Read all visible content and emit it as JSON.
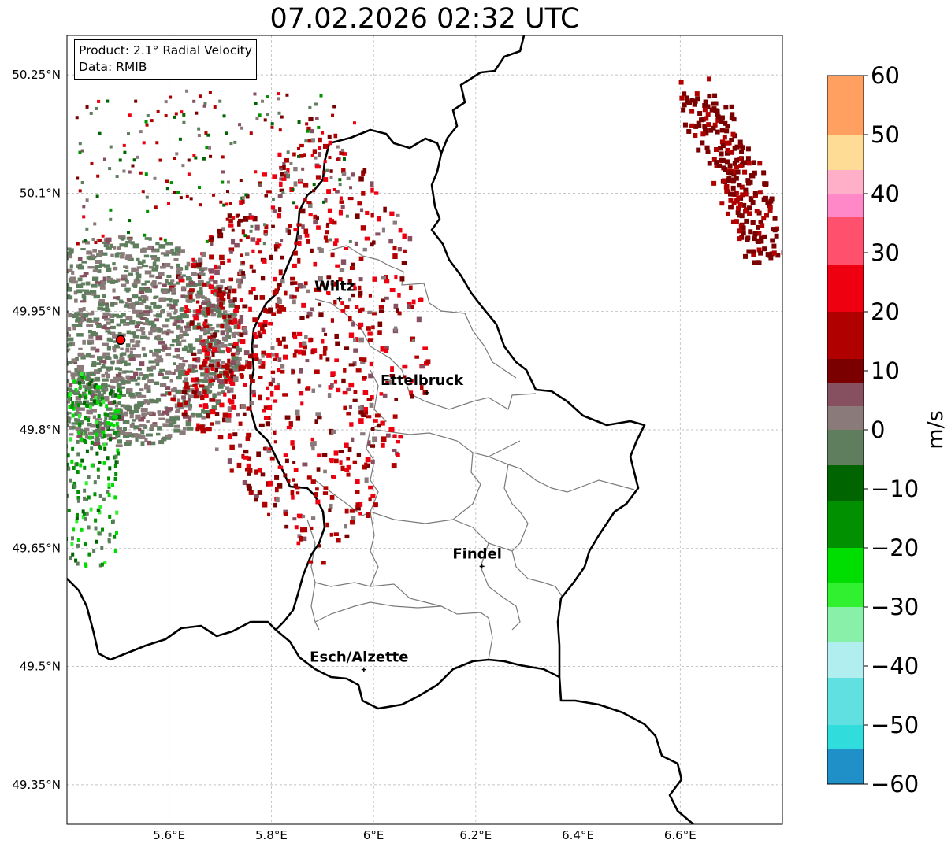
{
  "title": "07.02.2026 02:32 UTC",
  "info": {
    "product": "Product: 2.1° Radial Velocity",
    "source": "Data: RMIB"
  },
  "axes": {
    "lat_labels": [
      "50.25°N",
      "50.1°N",
      "49.95°N",
      "49.8°N",
      "49.65°N",
      "49.5°N",
      "49.35°N"
    ],
    "lon_labels": [
      "5.6°E",
      "5.8°E",
      "6°E",
      "6.2°E",
      "6.4°E",
      "6.6°E"
    ],
    "lat_values": [
      50.25,
      50.1,
      49.95,
      49.8,
      49.65,
      49.5,
      49.35
    ],
    "lon_values": [
      5.6,
      5.8,
      6.0,
      6.2,
      6.4,
      6.6
    ],
    "lon_range": [
      5.4,
      6.8
    ],
    "lat_range": [
      49.3,
      50.3
    ],
    "grid": true
  },
  "cities": [
    {
      "name": "Wiltz",
      "lon": 5.933,
      "lat": 49.966
    },
    {
      "name": "Ettelbruck",
      "lon": 6.104,
      "lat": 49.847
    },
    {
      "name": "Findel",
      "lon": 6.212,
      "lat": 49.627
    },
    {
      "name": "Esch/Alzette",
      "lon": 5.981,
      "lat": 49.496
    }
  ],
  "radar_site": {
    "lon": 5.505,
    "lat": 49.914,
    "color": "#ff0000"
  },
  "colorbar": {
    "unit": "m/s",
    "min": -60,
    "max": 60,
    "ticks": [
      60,
      50,
      40,
      30,
      20,
      10,
      0,
      -10,
      -20,
      -30,
      -40,
      -50,
      -60
    ],
    "tick_labels": [
      "60",
      "50",
      "40",
      "30",
      "20",
      "10",
      "0",
      "−10",
      "−20",
      "−30",
      "−40",
      "−50",
      "−60"
    ],
    "stops": [
      {
        "from": 50,
        "to": 60,
        "color": "#ffa060"
      },
      {
        "from": 44,
        "to": 50,
        "color": "#ffdc96"
      },
      {
        "from": 40,
        "to": 44,
        "color": "#ffb0c8"
      },
      {
        "from": 36,
        "to": 40,
        "color": "#ff88c8"
      },
      {
        "from": 28,
        "to": 36,
        "color": "#ff506e"
      },
      {
        "from": 20,
        "to": 28,
        "color": "#ee0010"
      },
      {
        "from": 12,
        "to": 20,
        "color": "#b00000"
      },
      {
        "from": 8,
        "to": 12,
        "color": "#7a0000"
      },
      {
        "from": 4,
        "to": 8,
        "color": "#865060"
      },
      {
        "from": 0,
        "to": 4,
        "color": "#8a7a7a"
      },
      {
        "from": -6,
        "to": 0,
        "color": "#5e7e5e"
      },
      {
        "from": -12,
        "to": -6,
        "color": "#006400"
      },
      {
        "from": -20,
        "to": -12,
        "color": "#009000"
      },
      {
        "from": -26,
        "to": -20,
        "color": "#00dd00"
      },
      {
        "from": -30,
        "to": -26,
        "color": "#30f030"
      },
      {
        "from": -36,
        "to": -30,
        "color": "#88f0a8"
      },
      {
        "from": -42,
        "to": -36,
        "color": "#b0eef0"
      },
      {
        "from": -50,
        "to": -42,
        "color": "#60e0e0"
      },
      {
        "from": -54,
        "to": -50,
        "color": "#30dcdc"
      },
      {
        "from": -60,
        "to": -54,
        "color": "#2090c8"
      }
    ]
  }
}
